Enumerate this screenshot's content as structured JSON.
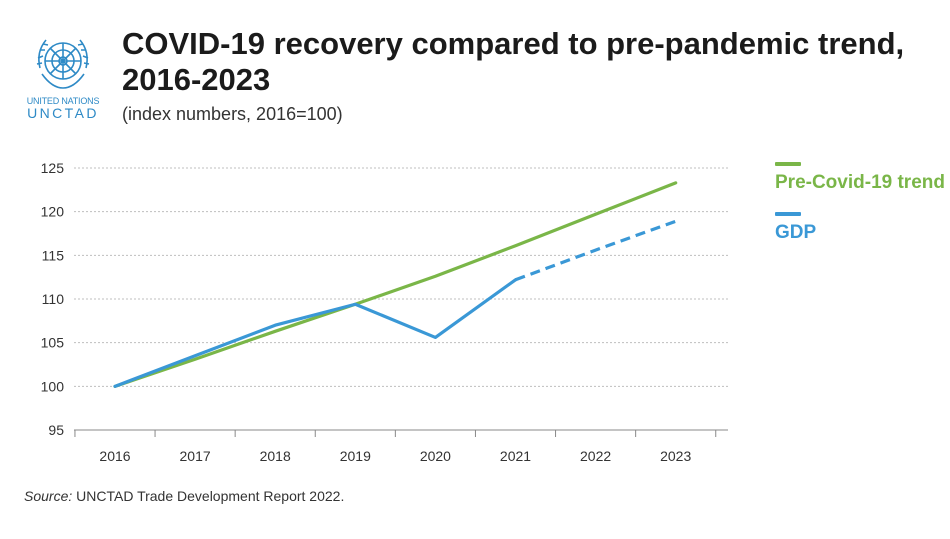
{
  "logo": {
    "org_text": "UNITED NATIONS",
    "name_text": "UNCTAD",
    "icon": "un-emblem-icon",
    "color": "#2e8ac6"
  },
  "title": "COVID-19 recovery compared to pre-pandemic trend, 2016-2023",
  "subtitle": "(index numbers, 2016=100)",
  "source": {
    "label": "Source:",
    "text": " UNCTAD Trade Development Report 2022."
  },
  "chart_data": {
    "type": "line",
    "x": [
      "2016",
      "2017",
      "2018",
      "2019",
      "2020",
      "2021",
      "2022",
      "2023"
    ],
    "ylim": [
      95,
      125
    ],
    "yticks": [
      95,
      100,
      105,
      110,
      115,
      120,
      125
    ],
    "grid": "horizontal dotted",
    "legend_position": "right",
    "series": [
      {
        "name": "Pre-Covid-19 trend",
        "color": "#7ab648",
        "style": "solid",
        "values": [
          100,
          103.1,
          106.3,
          109.4,
          112.6,
          116.1,
          119.7,
          123.3
        ]
      },
      {
        "name": "GDP",
        "color": "#3a98d6",
        "style": "solid then dashed from 2021",
        "values": [
          100,
          103.5,
          107.0,
          109.4,
          105.6,
          112.2,
          115.6,
          118.9
        ],
        "projected_from": "2021"
      }
    ]
  }
}
